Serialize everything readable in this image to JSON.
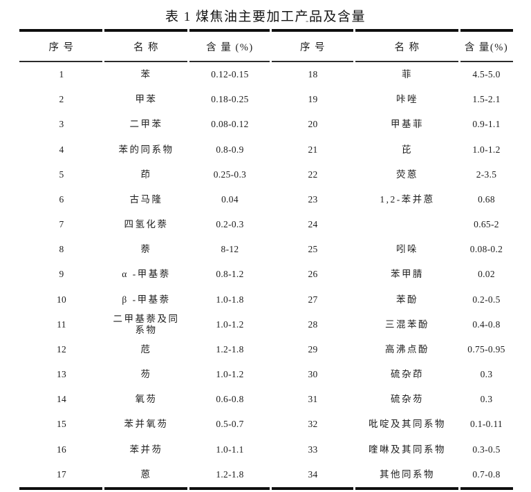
{
  "title": "表 1 煤焦油主要加工产品及含量",
  "title_mark": "-",
  "table": {
    "headers": [
      "序 号",
      "名 称",
      "含 量 (%)",
      "序 号",
      "名 称",
      "含 量(%)"
    ],
    "rows": [
      {
        "left": {
          "no": "1",
          "name": "苯",
          "value": "0.12-0.15"
        },
        "right": {
          "no": "18",
          "name": "菲",
          "value": "4.5-5.0"
        }
      },
      {
        "left": {
          "no": "2",
          "name": "甲苯",
          "value": "0.18-0.25"
        },
        "right": {
          "no": "19",
          "name": "咔唑",
          "value": "1.5-2.1"
        }
      },
      {
        "left": {
          "no": "3",
          "name": "二甲苯",
          "value": "0.08-0.12"
        },
        "right": {
          "no": "20",
          "name": "甲基菲",
          "value": "0.9-1.1"
        }
      },
      {
        "left": {
          "no": "4",
          "name": "苯的同系物",
          "value": "0.8-0.9"
        },
        "right": {
          "no": "21",
          "name": "芘",
          "value": "1.0-1.2"
        }
      },
      {
        "left": {
          "no": "5",
          "name": "茚",
          "value": "0.25-0.3"
        },
        "right": {
          "no": "22",
          "name": "荧蒽",
          "value": "2-3.5"
        }
      },
      {
        "left": {
          "no": "6",
          "name": "古马隆",
          "value": "0.04"
        },
        "right": {
          "no": "23",
          "name": "1,2-苯并蒽",
          "value": "0.68"
        }
      },
      {
        "left": {
          "no": "7",
          "name": "四氢化萘",
          "value": "0.2-0.3"
        },
        "right": {
          "no": "24",
          "name": "",
          "value": "0.65-2"
        }
      },
      {
        "left": {
          "no": "8",
          "name": "萘",
          "value": "8-12"
        },
        "right": {
          "no": "25",
          "name": "吲哚",
          "value": "0.08-0.2"
        }
      },
      {
        "left": {
          "no": "9",
          "name": "α -甲基萘",
          "value": "0.8-1.2"
        },
        "right": {
          "no": "26",
          "name": "苯甲腈",
          "value": "0.02"
        }
      },
      {
        "left": {
          "no": "10",
          "name": "β -甲基萘",
          "value": "1.0-1.8"
        },
        "right": {
          "no": "27",
          "name": "苯酚",
          "value": "0.2-0.5"
        }
      },
      {
        "left": {
          "no": "11",
          "name": "二甲基萘及同系物",
          "value": "1.0-1.2"
        },
        "right": {
          "no": "28",
          "name": "三混苯酚",
          "value": "0.4-0.8"
        }
      },
      {
        "left": {
          "no": "12",
          "name": "苊",
          "value": "1.2-1.8"
        },
        "right": {
          "no": "29",
          "name": "高沸点酚",
          "value": "0.75-0.95"
        }
      },
      {
        "left": {
          "no": "13",
          "name": "芴",
          "value": "1.0-1.2"
        },
        "right": {
          "no": "30",
          "name": "硫杂茚",
          "value": "0.3"
        }
      },
      {
        "left": {
          "no": "14",
          "name": "氧芴",
          "value": "0.6-0.8"
        },
        "right": {
          "no": "31",
          "name": "硫杂芴",
          "value": "0.3"
        }
      },
      {
        "left": {
          "no": "15",
          "name": "苯并氧芴",
          "value": "0.5-0.7"
        },
        "right": {
          "no": "32",
          "name": "吡啶及其同系物",
          "value": "0.1-0.11"
        }
      },
      {
        "left": {
          "no": "16",
          "name": "苯并芴",
          "value": "1.0-1.1"
        },
        "right": {
          "no": "33",
          "name": "喹啉及其同系物",
          "value": "0.3-0.5"
        }
      },
      {
        "left": {
          "no": "17",
          "name": "蒽",
          "value": "1.2-1.8"
        },
        "right": {
          "no": "34",
          "name": "其他同系物",
          "value": "0.7-0.8"
        }
      }
    ]
  }
}
